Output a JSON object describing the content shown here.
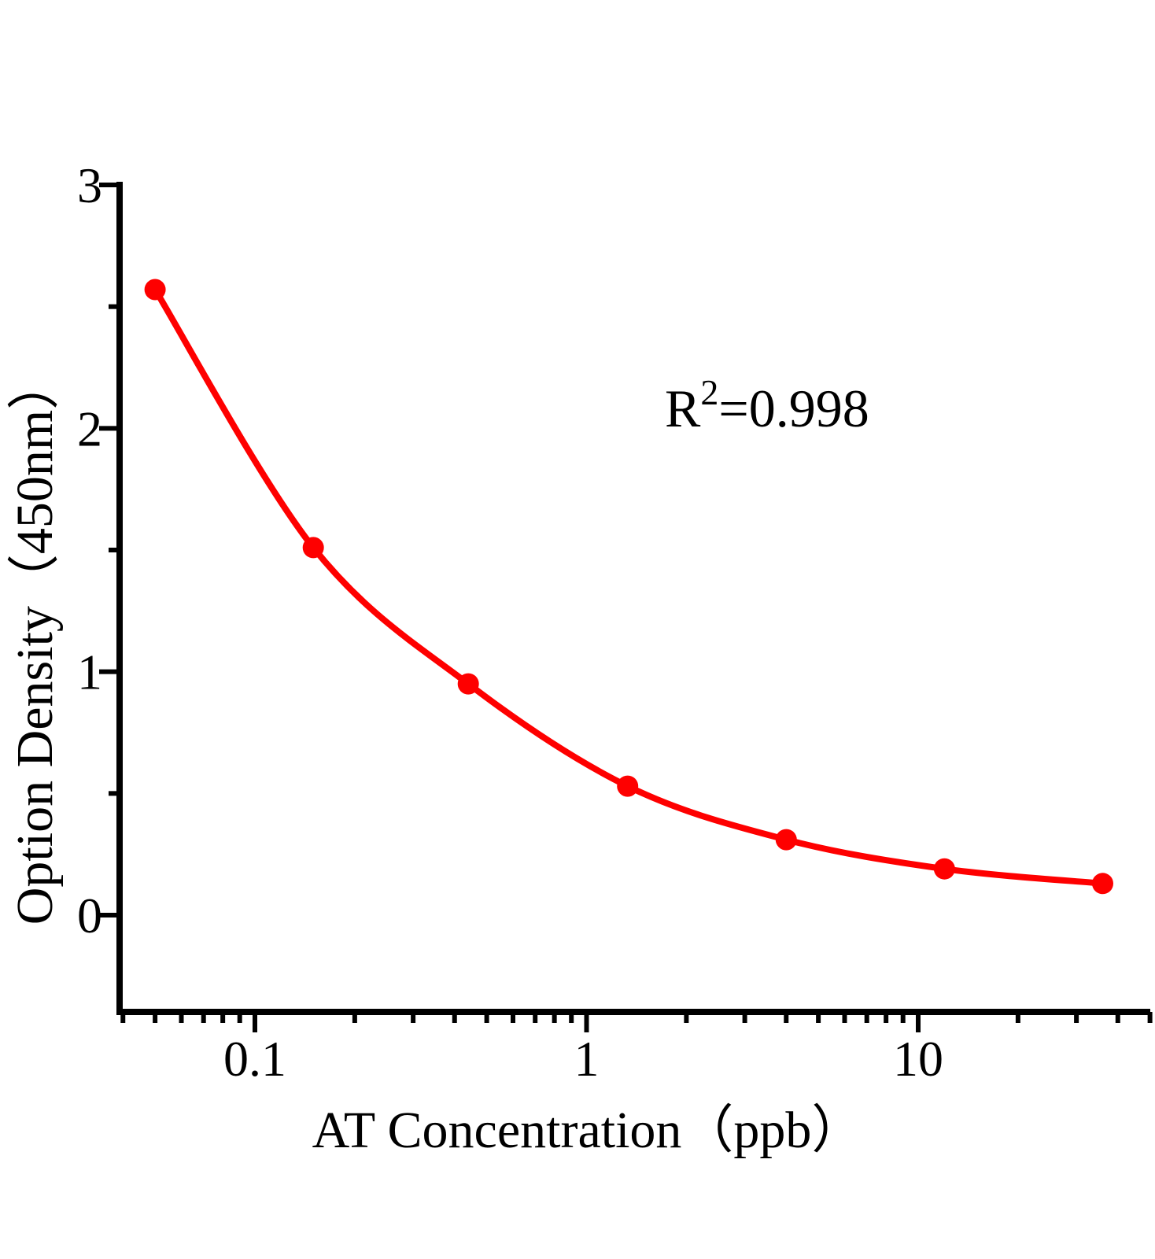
{
  "figure": {
    "background_color": "#ffffff",
    "axis_color": "#000000"
  },
  "chart_data": {
    "type": "line",
    "title": "",
    "xlabel": "AT Concentration（ppb）",
    "ylabel": "Option Density（450nm）",
    "legend": null,
    "grid": false,
    "x_scale": "log",
    "line_color": "#fe0000",
    "marker_color": "#fe0000",
    "marker_shape": "circle",
    "points": [
      {
        "x": 0.05,
        "y": 2.57
      },
      {
        "x": 0.15,
        "y": 1.51
      },
      {
        "x": 0.44,
        "y": 0.95
      },
      {
        "x": 1.33,
        "y": 0.53
      },
      {
        "x": 4,
        "y": 0.31
      },
      {
        "x": 12,
        "y": 0.19
      },
      {
        "x": 36,
        "y": 0.13
      }
    ],
    "annotation": {
      "display": "R²=0.998",
      "base": "R",
      "superscript": "2",
      "suffix": "=0.998"
    },
    "x_axis": {
      "label": "AT Concentration（ppb）",
      "range": [
        0.039,
        50
      ],
      "major_ticks": [
        {
          "value": 0.1,
          "label": "0.1"
        },
        {
          "value": 1,
          "label": "1"
        },
        {
          "value": 10,
          "label": "10"
        }
      ],
      "minor_ticks": [
        0.04,
        0.05,
        0.06,
        0.07,
        0.08,
        0.09,
        0.2,
        0.3,
        0.4,
        0.5,
        0.6,
        0.7,
        0.8,
        0.9,
        2,
        3,
        4,
        5,
        6,
        7,
        8,
        9,
        20,
        30,
        40,
        50
      ]
    },
    "y_axis": {
      "label": "Option Density（450nm）",
      "range": [
        -0.4,
        3.01
      ],
      "major_ticks": [
        {
          "value": 0,
          "label": "0"
        },
        {
          "value": 1,
          "label": "1"
        },
        {
          "value": 2,
          "label": "2"
        },
        {
          "value": 3,
          "label": "3"
        }
      ],
      "minor_ticks": [
        0.5,
        1.5,
        2.5
      ]
    }
  }
}
